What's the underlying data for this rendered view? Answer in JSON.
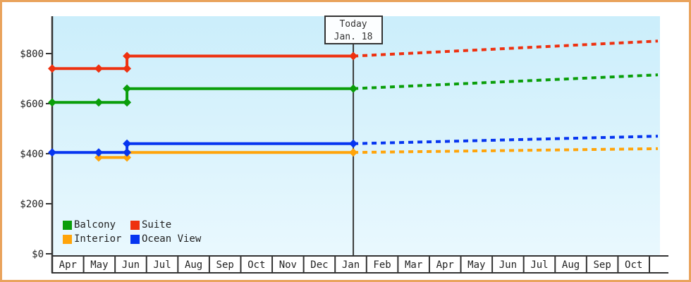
{
  "chart_data": {
    "type": "line",
    "title": "",
    "y_axis": {
      "tick_values": [
        0,
        200,
        400,
        600,
        800
      ],
      "tick_labels": [
        "$0",
        "$200",
        "$400",
        "$600",
        "$800"
      ],
      "range": [
        0,
        950
      ],
      "unit": "USD"
    },
    "x_axis": {
      "tick_labels": [
        "Apr",
        "May",
        "Jun",
        "Jul",
        "Aug",
        "Sep",
        "Oct",
        "Nov",
        "Dec",
        "Jan",
        "Feb",
        "Mar",
        "Apr",
        "May",
        "Jun",
        "Jul",
        "Aug",
        "Sep",
        "Oct"
      ]
    },
    "today_marker": {
      "line1": "Today",
      "line2": "Jan. 18",
      "month_offset": 9.58
    },
    "forecast_end_month_offset": 19.27,
    "series": [
      {
        "name": "Balcony",
        "color": "#0a9e0a",
        "history": [
          {
            "month_offset": 0.0,
            "price": 605
          },
          {
            "month_offset": 1.48,
            "price": 605
          },
          {
            "month_offset": 2.38,
            "price": 605
          },
          {
            "month_offset": 2.38,
            "price": 660
          },
          {
            "month_offset": 9.58,
            "price": 660
          }
        ],
        "forecast_price_at_end": 715
      },
      {
        "name": "Suite",
        "color": "#ee3110",
        "history": [
          {
            "month_offset": 0.0,
            "price": 740
          },
          {
            "month_offset": 1.48,
            "price": 740
          },
          {
            "month_offset": 2.38,
            "price": 740
          },
          {
            "month_offset": 2.38,
            "price": 790
          },
          {
            "month_offset": 9.58,
            "price": 790
          }
        ],
        "forecast_price_at_end": 850
      },
      {
        "name": "Interior",
        "color": "#ffa40a",
        "history": [
          {
            "month_offset": 1.48,
            "price": 385
          },
          {
            "month_offset": 2.38,
            "price": 385
          },
          {
            "month_offset": 2.38,
            "price": 405
          },
          {
            "month_offset": 9.58,
            "price": 405
          }
        ],
        "forecast_price_at_end": 420
      },
      {
        "name": "Ocean View",
        "color": "#0635f0",
        "history": [
          {
            "month_offset": 0.0,
            "price": 405
          },
          {
            "month_offset": 1.48,
            "price": 405
          },
          {
            "month_offset": 2.38,
            "price": 405
          },
          {
            "month_offset": 2.38,
            "price": 440
          },
          {
            "month_offset": 9.58,
            "price": 440
          }
        ],
        "forecast_price_at_end": 470
      }
    ],
    "legend": {
      "order": [
        "Balcony",
        "Suite",
        "Interior",
        "Ocean View"
      ],
      "position": "bottom-left-inside"
    },
    "grid": false,
    "colors": {
      "plot_bg_top": "#cbeefb",
      "plot_bg_bottom": "#e9f8fe",
      "axis": "#333333",
      "text": "#222222",
      "frame_border": "#e9a35c",
      "today_line": "#3a3a3a",
      "today_box_bg": "#fcfeff"
    }
  }
}
